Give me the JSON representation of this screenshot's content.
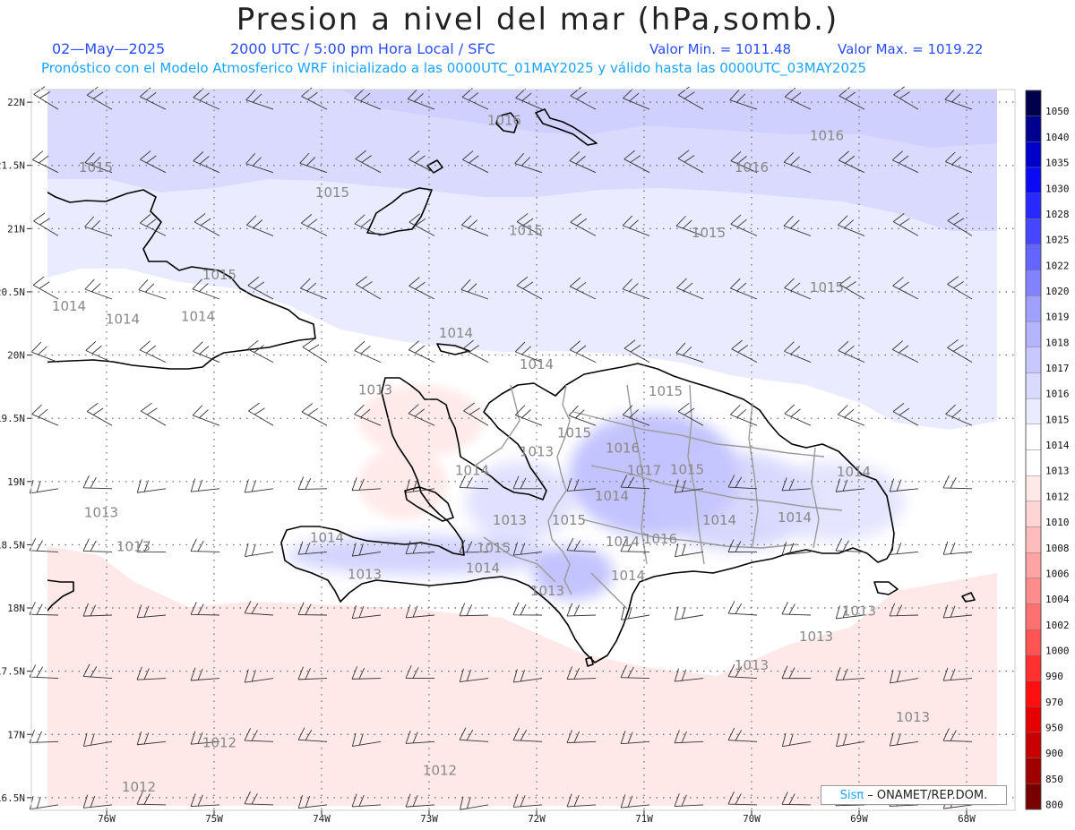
{
  "header": {
    "title": "Presion a nivel del mar (hPa,somb.)",
    "date": "02—May—2025",
    "time_info": "2000 UTC / 5:00 pm Hora Local / SFC",
    "min_label": "Valor Min. = 1011.48",
    "max_label": "Valor Max. = 1019.22",
    "model_info": "Pronóstico con el Modelo Atmosferico WRF inicializado a las 0000UTC_01MAY2025 y válido hasta las  0000UTC_03MAY2025"
  },
  "map": {
    "lat_ticks": [
      "22N",
      "21.5N",
      "21N",
      "20.5N",
      "20N",
      "19.5N",
      "19N",
      "18.5N",
      "18N",
      "17.5N",
      "17N",
      "16.5N"
    ],
    "lon_ticks": [
      "76W",
      "75W",
      "74W",
      "73W",
      "72W",
      "71W",
      "70W",
      "69W",
      "68W"
    ],
    "lat_range": [
      16.4,
      22.1
    ],
    "lon_range": [
      -76.7,
      -67.55
    ],
    "grid": "dotted",
    "contours": [
      {
        "label": "1016",
        "lon": -72.3,
        "lat": 21.82
      },
      {
        "label": "1016",
        "lon": -69.3,
        "lat": 21.7
      },
      {
        "label": "1016",
        "lon": -70.0,
        "lat": 21.45
      },
      {
        "label": "1015",
        "lon": -76.1,
        "lat": 21.45
      },
      {
        "label": "1015",
        "lon": -73.9,
        "lat": 21.25
      },
      {
        "label": "1015",
        "lon": -72.1,
        "lat": 20.95
      },
      {
        "label": "1015",
        "lon": -70.4,
        "lat": 20.93
      },
      {
        "label": "1015",
        "lon": -74.95,
        "lat": 20.6
      },
      {
        "label": "1015",
        "lon": -69.3,
        "lat": 20.5
      },
      {
        "label": "1014",
        "lon": -76.35,
        "lat": 20.35
      },
      {
        "label": "1014",
        "lon": -75.85,
        "lat": 20.25
      },
      {
        "label": "1014",
        "lon": -75.15,
        "lat": 20.27
      },
      {
        "label": "1014",
        "lon": -72.75,
        "lat": 20.14
      },
      {
        "label": "1014",
        "lon": -72.0,
        "lat": 19.89
      },
      {
        "label": "1013",
        "lon": -73.5,
        "lat": 19.69
      },
      {
        "label": "1015",
        "lon": -70.8,
        "lat": 19.68
      },
      {
        "label": "1015",
        "lon": -71.65,
        "lat": 19.35
      },
      {
        "label": "1016",
        "lon": -71.2,
        "lat": 19.23
      },
      {
        "label": "1013",
        "lon": -72.0,
        "lat": 19.2
      },
      {
        "label": "1017",
        "lon": -71.0,
        "lat": 19.05
      },
      {
        "label": "1015",
        "lon": -70.6,
        "lat": 19.06
      },
      {
        "label": "1014",
        "lon": -72.6,
        "lat": 19.05
      },
      {
        "label": "1014",
        "lon": -69.05,
        "lat": 19.04
      },
      {
        "label": "1014",
        "lon": -71.3,
        "lat": 18.85
      },
      {
        "label": "1013",
        "lon": -76.05,
        "lat": 18.72
      },
      {
        "label": "1013",
        "lon": -72.25,
        "lat": 18.66
      },
      {
        "label": "1015",
        "lon": -71.7,
        "lat": 18.66
      },
      {
        "label": "1014",
        "lon": -70.3,
        "lat": 18.66
      },
      {
        "label": "1014",
        "lon": -69.6,
        "lat": 18.68
      },
      {
        "label": "1013",
        "lon": -75.75,
        "lat": 18.45
      },
      {
        "label": "1014",
        "lon": -73.95,
        "lat": 18.52
      },
      {
        "label": "1016",
        "lon": -70.85,
        "lat": 18.51
      },
      {
        "label": "1014",
        "lon": -71.2,
        "lat": 18.49
      },
      {
        "label": "1015",
        "lon": -72.4,
        "lat": 18.44
      },
      {
        "label": "1014",
        "lon": -72.5,
        "lat": 18.28
      },
      {
        "label": "1013",
        "lon": -73.6,
        "lat": 18.23
      },
      {
        "label": "1014",
        "lon": -71.15,
        "lat": 18.22
      },
      {
        "label": "1013",
        "lon": -71.9,
        "lat": 18.1
      },
      {
        "label": "1013",
        "lon": -69.0,
        "lat": 17.94
      },
      {
        "label": "1013",
        "lon": -69.4,
        "lat": 17.74
      },
      {
        "label": "1013",
        "lon": -70.0,
        "lat": 17.51
      },
      {
        "label": "1013",
        "lon": -68.5,
        "lat": 17.1
      },
      {
        "label": "1012",
        "lon": -74.95,
        "lat": 16.9
      },
      {
        "label": "1012",
        "lon": -72.9,
        "lat": 16.68
      },
      {
        "label": "1012",
        "lon": -75.7,
        "lat": 16.55
      }
    ]
  },
  "colorbar": {
    "levels": [
      "1050",
      "1040",
      "1035",
      "1030",
      "1028",
      "1025",
      "1022",
      "1020",
      "1019",
      "1018",
      "1017",
      "1016",
      "1015",
      "1014",
      "1013",
      "1012",
      "1010",
      "1008",
      "1006",
      "1004",
      "1002",
      "1000",
      "990",
      "970",
      "950",
      "900",
      "850",
      "800"
    ],
    "colors": [
      "#00004d",
      "#000090",
      "#0000c8",
      "#0a0af5",
      "#2828ff",
      "#4646ff",
      "#6464ff",
      "#8282ff",
      "#a0a0ff",
      "#b4b4ff",
      "#c8c8ff",
      "#dadaff",
      "#ebebff",
      "#ffffff",
      "#ffffff",
      "#ffe8e8",
      "#ffd4d4",
      "#ffbcbc",
      "#ffa4a4",
      "#ff8c8c",
      "#ff7070",
      "#ff5454",
      "#ff3030",
      "#ff1010",
      "#e60000",
      "#c80000",
      "#a00000",
      "#780000"
    ]
  },
  "credit": {
    "brand": "Sisπ",
    "text": "– ONAMET/REP.DOM."
  }
}
